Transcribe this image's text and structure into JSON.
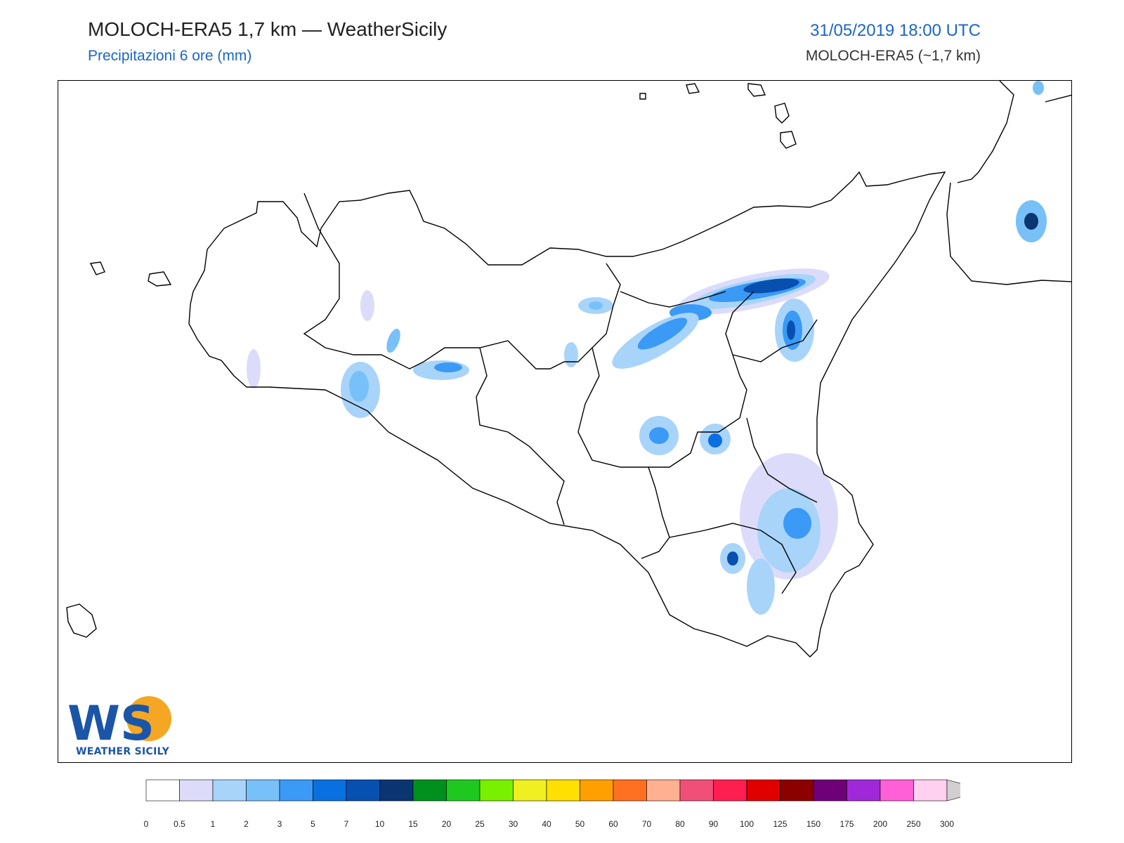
{
  "header": {
    "title": "MOLOCH-ERA5 1,7 km — WeatherSicily",
    "subtitle": "Precipitazioni 6 ore (mm)",
    "datetime": "31/05/2019 18:00 UTC",
    "model": "MOLOCH-ERA5 (~1,7 km)"
  },
  "logo": {
    "text": "WEATHER SICILY",
    "letters": "WS"
  },
  "colorbar": {
    "labels": [
      "0",
      "0.5",
      "1",
      "2",
      "3",
      "5",
      "7",
      "10",
      "15",
      "20",
      "25",
      "30",
      "40",
      "50",
      "60",
      "70",
      "80",
      "90",
      "100",
      "125",
      "150",
      "175",
      "200",
      "250",
      "300"
    ],
    "colors": [
      "#ffffff",
      "#dcdcfa",
      "#a8d4fa",
      "#78c0f8",
      "#3a9af5",
      "#0a6fe0",
      "#0850b0",
      "#0a3570",
      "#00901e",
      "#1ec81e",
      "#78f000",
      "#f0f020",
      "#ffe000",
      "#ffa000",
      "#ff7020",
      "#ffb090",
      "#f05078",
      "#ff1e50",
      "#e00000",
      "#8c0000",
      "#6e0078",
      "#a028d8",
      "#ff60d8",
      "#ffd0f0"
    ],
    "extend_color": "#d0d0d0"
  },
  "map": {
    "precip_levels": [
      "#dcdcfa",
      "#a8d4fa",
      "#78c0f8",
      "#3a9af5",
      "#0a6fe0",
      "#0850b0",
      "#0a3570"
    ]
  }
}
